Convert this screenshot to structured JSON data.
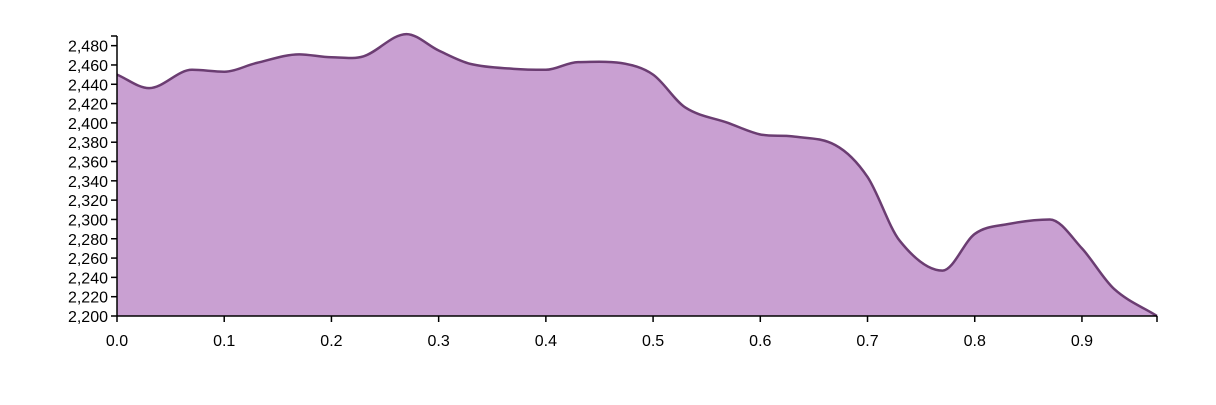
{
  "chart_data": {
    "type": "area",
    "title": "",
    "xlabel": "",
    "ylabel": "",
    "xlim": [
      0,
      0.97
    ],
    "ylim": [
      2200,
      2490
    ],
    "grid": false,
    "x_ticks": [
      "0.0",
      "0.1",
      "0.2",
      "0.3",
      "0.4",
      "0.5",
      "0.6",
      "0.7",
      "0.8",
      "0.9"
    ],
    "y_ticks": [
      "2,200",
      "2,220",
      "2,240",
      "2,260",
      "2,280",
      "2,300",
      "2,320",
      "2,340",
      "2,360",
      "2,380",
      "2,400",
      "2,420",
      "2,440",
      "2,460",
      "2,480"
    ],
    "series": [
      {
        "fill": "#c9a0d2",
        "stroke": "#6b3d72",
        "x": [
          0.0,
          0.03,
          0.07,
          0.1,
          0.13,
          0.17,
          0.2,
          0.23,
          0.27,
          0.3,
          0.33,
          0.37,
          0.4,
          0.43,
          0.47,
          0.5,
          0.53,
          0.57,
          0.6,
          0.63,
          0.67,
          0.7,
          0.73,
          0.77,
          0.8,
          0.83,
          0.87,
          0.9,
          0.93,
          0.97
        ],
        "y": [
          2450,
          2436,
          2455,
          2453,
          2462,
          2471,
          2468,
          2469,
          2492,
          2475,
          2461,
          2456,
          2455,
          2463,
          2462,
          2450,
          2416,
          2400,
          2388,
          2386,
          2377,
          2344,
          2278,
          2247,
          2285,
          2295,
          2300,
          2270,
          2228,
          2200
        ]
      }
    ]
  }
}
